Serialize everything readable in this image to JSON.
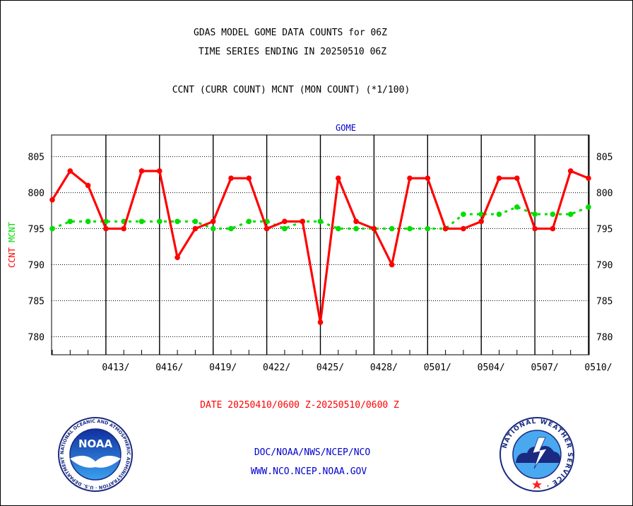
{
  "header": {
    "title_line1": "GDAS MODEL GOME DATA COUNTS for 06Z",
    "title_line2": "TIME SERIES ENDING IN 20250510 06Z",
    "subtitle": "CCNT (CURR COUNT) MCNT (MON COUNT) (*1/100)"
  },
  "footer": {
    "date_range": "DATE 20250410/0600 Z-20250510/0600 Z",
    "org_path": "DOC/NOAA/NWS/NCEP/NCO",
    "website": "WWW.NCO.NCEP.NOAA.GOV"
  },
  "logos": {
    "noaa_center_text": "NOAA",
    "noaa_ring_text": "NATIONAL OCEANIC AND ATMOSPHERIC ADMINISTRATION · U.S. DEPARTMENT OF COMMERCE ·",
    "nws_ring_text": "NATIONAL WEATHER SERVICE ·"
  },
  "colors": {
    "ccnt": "#ff0000",
    "mcnt": "#00dd00",
    "panel_title": "#0000cc",
    "footer_links": "#0000cc",
    "date_range": "#ff0000"
  },
  "chart_data": {
    "type": "line",
    "title": "GOME",
    "ylabel_left": [
      "CCNT",
      "MCNT"
    ],
    "ylim": [
      777.5,
      808
    ],
    "y_ticks": [
      780,
      785,
      790,
      795,
      800,
      805
    ],
    "x_tick_labels": [
      "0413/",
      "0416/",
      "0419/",
      "0422/",
      "0425/",
      "0428/",
      "0501/",
      "0504/",
      "0507/",
      "0510/"
    ],
    "x": [
      "0410",
      "0411",
      "0412",
      "0413",
      "0414",
      "0415",
      "0416",
      "0417",
      "0418",
      "0419",
      "0420",
      "0421",
      "0422",
      "0423",
      "0424",
      "0425",
      "0426",
      "0427",
      "0428",
      "0429",
      "0430",
      "0501",
      "0502",
      "0503",
      "0504",
      "0505",
      "0506",
      "0507",
      "0508",
      "0509",
      "0510"
    ],
    "series": [
      {
        "name": "CCNT",
        "color": "#ff0000",
        "values": [
          799,
          803,
          801,
          795,
          795,
          803,
          803,
          791,
          795,
          796,
          802,
          802,
          795,
          796,
          796,
          782,
          802,
          796,
          795,
          790,
          802,
          802,
          795,
          795,
          796,
          802,
          802,
          795,
          795,
          803,
          802
        ]
      },
      {
        "name": "MCNT",
        "color": "#00dd00",
        "values": [
          795,
          796,
          796,
          796,
          796,
          796,
          796,
          796,
          796,
          795,
          795,
          796,
          796,
          795,
          796,
          796,
          795,
          795,
          795,
          795,
          795,
          795,
          795,
          797,
          797,
          797,
          798,
          797,
          797,
          797,
          798
        ]
      }
    ]
  }
}
